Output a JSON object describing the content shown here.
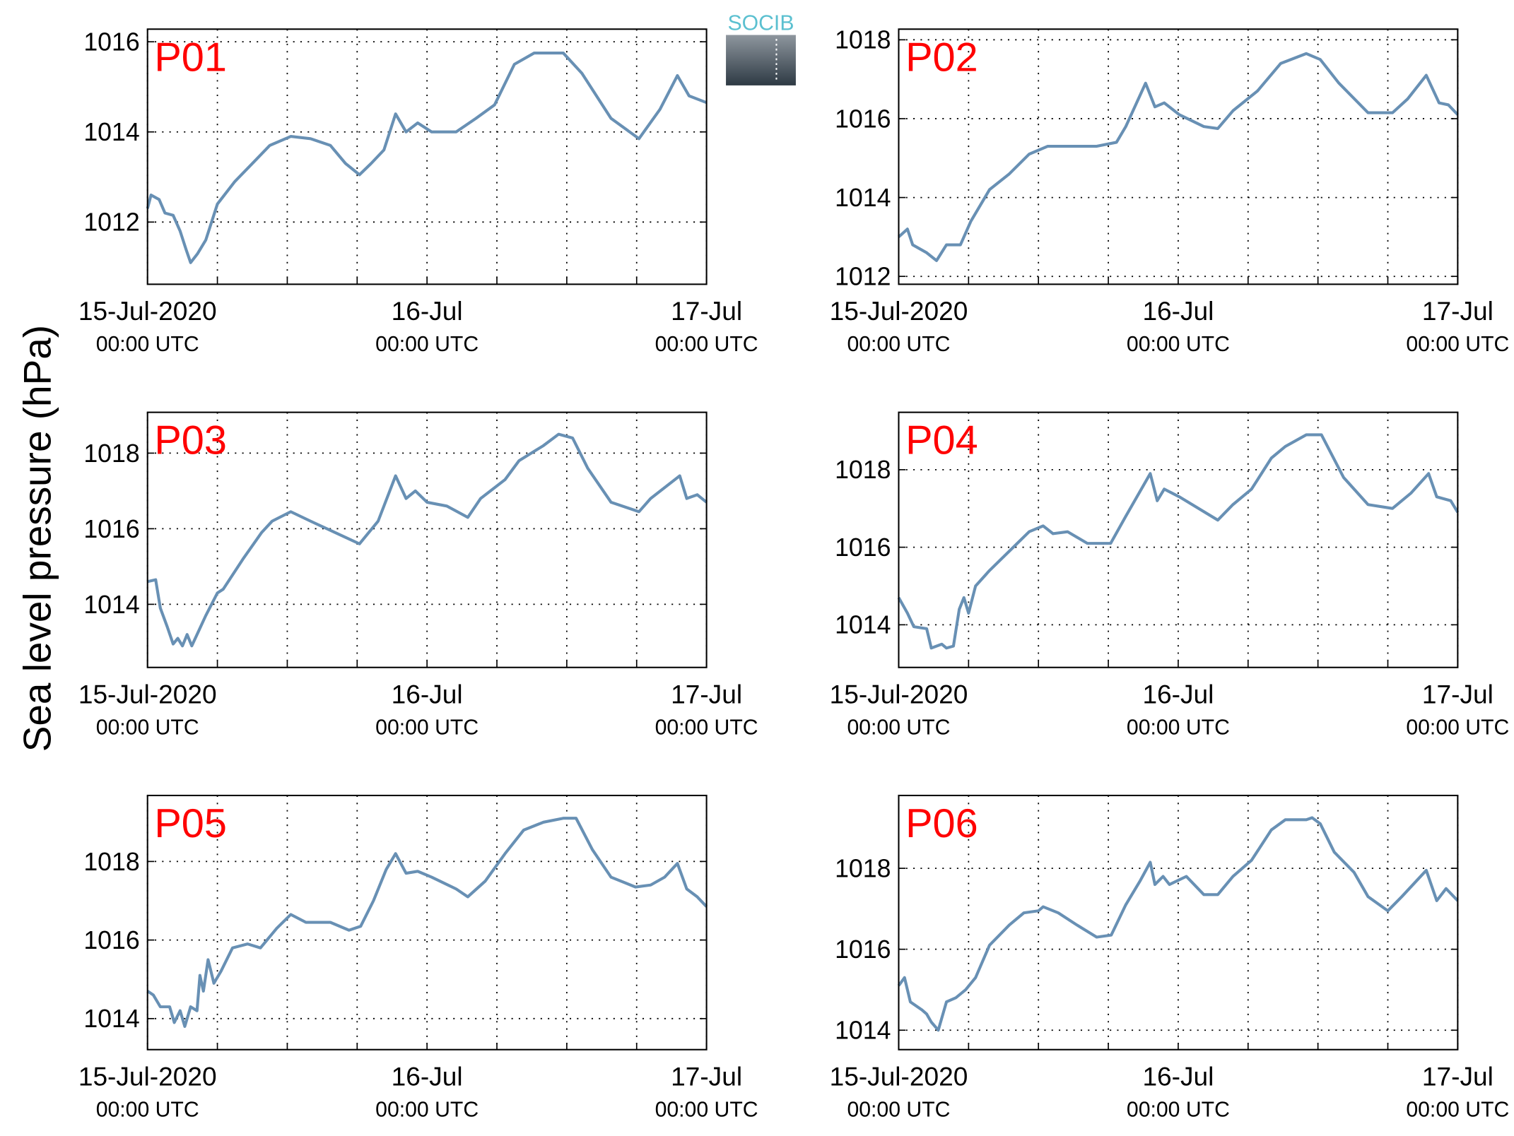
{
  "logo": "SOCIB",
  "ylabel": "Sea level pressure (hPa)",
  "chart_data": [
    {
      "type": "line",
      "title": "P01",
      "color": "#6890b4",
      "grid": true,
      "x": [
        0,
        0.3,
        1,
        1.5,
        2.2,
        2.8,
        3.3,
        3.7,
        4.3,
        5,
        6,
        7.5,
        9,
        10.5,
        12.3,
        14,
        15.7,
        17,
        18.2,
        19.2,
        20.3,
        21.3,
        22.2,
        23.2,
        24.4,
        26.5,
        28.2,
        29.8,
        31.5,
        33.2,
        35.7,
        37.3,
        39.8,
        42.2,
        44,
        45.5,
        46.5,
        48
      ],
      "values": [
        1012.3,
        1012.6,
        1012.5,
        1012.2,
        1012.15,
        1011.8,
        1011.4,
        1011.1,
        1011.3,
        1011.6,
        1012.4,
        1012.9,
        1013.3,
        1013.7,
        1013.9,
        1013.85,
        1013.7,
        1013.3,
        1013.05,
        1013.3,
        1013.6,
        1014.4,
        1014.0,
        1014.2,
        1014.0,
        1014.0,
        1014.3,
        1014.6,
        1015.5,
        1015.75,
        1015.75,
        1015.3,
        1014.3,
        1013.85,
        1014.5,
        1015.25,
        1014.8,
        1014.65
      ],
      "xlim": [
        0,
        48
      ],
      "xticks": [
        {
          "value": 0,
          "label": "15-Jul-2020"
        },
        {
          "value": 24,
          "label": "16-Jul"
        },
        {
          "value": 48,
          "label": "17-Jul"
        }
      ],
      "xtick_sublabels": [
        "00:00 UTC",
        "00:00 UTC",
        "00:00 UTC"
      ],
      "xgrid": [
        6,
        12,
        18,
        30,
        36,
        42
      ],
      "ylim": [
        1010.62,
        1016.28
      ],
      "yticks": [
        1012,
        1014,
        1016
      ]
    },
    {
      "type": "line",
      "title": "P02",
      "color": "#6890b4",
      "grid": true,
      "x": [
        0,
        0.75,
        1.2,
        2.4,
        3.25,
        4.1,
        5.3,
        6.2,
        7.8,
        9.5,
        11.2,
        12.8,
        14.5,
        17,
        18.7,
        19.5,
        21.2,
        22,
        22.8,
        24.1,
        26.2,
        27.4,
        28.7,
        30.8,
        32.8,
        35,
        36.2,
        37.8,
        40.3,
        42.4,
        43.7,
        45.3,
        46.4,
        47.2,
        48
      ],
      "values": [
        1013.0,
        1013.2,
        1012.8,
        1012.6,
        1012.4,
        1012.8,
        1012.8,
        1013.4,
        1014.2,
        1014.6,
        1015.1,
        1015.3,
        1015.3,
        1015.3,
        1015.4,
        1015.8,
        1016.9,
        1016.3,
        1016.4,
        1016.1,
        1015.8,
        1015.75,
        1016.2,
        1016.7,
        1017.4,
        1017.65,
        1017.5,
        1016.9,
        1016.15,
        1016.15,
        1016.5,
        1017.1,
        1016.4,
        1016.35,
        1016.1
      ],
      "xlim": [
        0,
        48
      ],
      "xticks": [
        {
          "value": 0,
          "label": "15-Jul-2020"
        },
        {
          "value": 24,
          "label": "16-Jul"
        },
        {
          "value": 48,
          "label": "17-Jul"
        }
      ],
      "xtick_sublabels": [
        "00:00 UTC",
        "00:00 UTC",
        "00:00 UTC"
      ],
      "xgrid": [
        6,
        12,
        18,
        30,
        36,
        42
      ],
      "ylim": [
        1011.8,
        1018.27
      ],
      "yticks": [
        1012,
        1014,
        1016,
        1018
      ]
    },
    {
      "type": "line",
      "title": "P03",
      "color": "#6890b4",
      "grid": true,
      "x": [
        0,
        0.7,
        1.1,
        1.7,
        2.2,
        2.6,
        3,
        3.4,
        3.8,
        4.4,
        5,
        6,
        6.5,
        8.2,
        9.8,
        10.7,
        12.3,
        14,
        16.1,
        18.2,
        19.8,
        21.3,
        22.2,
        23,
        24,
        25.7,
        27.5,
        28.6,
        30.7,
        31.9,
        34,
        35.3,
        36.5,
        37.8,
        39.8,
        42.2,
        43.2,
        45.7,
        46.3,
        47.2,
        48
      ],
      "values": [
        1014.6,
        1014.65,
        1013.9,
        1013.4,
        1012.95,
        1013.1,
        1012.9,
        1013.2,
        1012.9,
        1013.3,
        1013.7,
        1014.3,
        1014.4,
        1015.2,
        1015.9,
        1016.2,
        1016.45,
        1016.2,
        1015.9,
        1015.6,
        1016.2,
        1017.4,
        1016.8,
        1017.0,
        1016.7,
        1016.6,
        1016.3,
        1016.8,
        1017.3,
        1017.8,
        1018.2,
        1018.5,
        1018.4,
        1017.6,
        1016.7,
        1016.45,
        1016.8,
        1017.4,
        1016.8,
        1016.9,
        1016.7
      ],
      "xlim": [
        0,
        48
      ],
      "xticks": [
        {
          "value": 0,
          "label": "15-Jul-2020"
        },
        {
          "value": 24,
          "label": "16-Jul"
        },
        {
          "value": 48,
          "label": "17-Jul"
        }
      ],
      "xtick_sublabels": [
        "00:00 UTC",
        "00:00 UTC",
        "00:00 UTC"
      ],
      "xgrid": [
        6,
        12,
        18,
        30,
        36,
        42
      ],
      "ylim": [
        1012.33,
        1019.08
      ],
      "yticks": [
        1014,
        1016,
        1018
      ]
    },
    {
      "type": "line",
      "title": "P04",
      "color": "#6890b4",
      "grid": true,
      "x": [
        0,
        0.75,
        1.3,
        2.4,
        2.8,
        3.7,
        4.1,
        4.7,
        5.2,
        5.6,
        6,
        6.6,
        7.8,
        9.5,
        11.2,
        12.4,
        13.25,
        14.5,
        16.2,
        18.2,
        19.5,
        21.6,
        22.2,
        22.8,
        24.1,
        27.4,
        28.7,
        30.3,
        32,
        33.2,
        35,
        36.3,
        38.2,
        40.3,
        42.4,
        44,
        45.5,
        46.2,
        47.4,
        48
      ],
      "values": [
        1014.7,
        1014.3,
        1013.95,
        1013.9,
        1013.4,
        1013.5,
        1013.4,
        1013.45,
        1014.4,
        1014.7,
        1014.3,
        1015.0,
        1015.4,
        1015.9,
        1016.4,
        1016.55,
        1016.35,
        1016.4,
        1016.1,
        1016.1,
        1016.8,
        1017.9,
        1017.2,
        1017.5,
        1017.3,
        1016.7,
        1017.1,
        1017.5,
        1018.3,
        1018.6,
        1018.9,
        1018.9,
        1017.8,
        1017.1,
        1017.0,
        1017.4,
        1017.9,
        1017.3,
        1017.2,
        1016.9
      ],
      "xlim": [
        0,
        48
      ],
      "xticks": [
        {
          "value": 0,
          "label": "15-Jul-2020"
        },
        {
          "value": 24,
          "label": "16-Jul"
        },
        {
          "value": 48,
          "label": "17-Jul"
        }
      ],
      "xtick_sublabels": [
        "00:00 UTC",
        "00:00 UTC",
        "00:00 UTC"
      ],
      "xgrid": [
        6,
        12,
        18,
        30,
        36,
        42
      ],
      "ylim": [
        1012.9,
        1019.48
      ],
      "yticks": [
        1014,
        1016,
        1018
      ]
    },
    {
      "type": "line",
      "title": "P05",
      "color": "#6890b4",
      "grid": true,
      "x": [
        0,
        0.5,
        1.1,
        1.9,
        2.3,
        2.8,
        3.2,
        3.7,
        4.25,
        4.5,
        4.8,
        5.2,
        5.7,
        6.3,
        7.3,
        8.6,
        9.7,
        11.1,
        12.3,
        13.6,
        15.7,
        17.3,
        18.3,
        19.4,
        20.5,
        21.3,
        22.2,
        23.2,
        24.4,
        26.5,
        27.5,
        29,
        30.7,
        32.3,
        34,
        35.7,
        36.8,
        38.2,
        39.8,
        41.9,
        43.2,
        44.4,
        45.5,
        46.3,
        47.2,
        48
      ],
      "values": [
        1014.7,
        1014.6,
        1014.3,
        1014.3,
        1013.9,
        1014.2,
        1013.8,
        1014.3,
        1014.2,
        1015.1,
        1014.7,
        1015.5,
        1014.9,
        1015.2,
        1015.8,
        1015.9,
        1015.8,
        1016.3,
        1016.65,
        1016.45,
        1016.45,
        1016.25,
        1016.35,
        1017.0,
        1017.8,
        1018.2,
        1017.7,
        1017.75,
        1017.6,
        1017.3,
        1017.1,
        1017.5,
        1018.2,
        1018.8,
        1019.0,
        1019.1,
        1019.1,
        1018.3,
        1017.6,
        1017.35,
        1017.4,
        1017.6,
        1017.95,
        1017.3,
        1017.1,
        1016.85
      ],
      "xlim": [
        0,
        48
      ],
      "xticks": [
        {
          "value": 0,
          "label": "15-Jul-2020"
        },
        {
          "value": 24,
          "label": "16-Jul"
        },
        {
          "value": 48,
          "label": "17-Jul"
        }
      ],
      "xtick_sublabels": [
        "00:00 UTC",
        "00:00 UTC",
        "00:00 UTC"
      ],
      "xgrid": [
        6,
        12,
        18,
        30,
        36,
        42
      ],
      "ylim": [
        1013.21,
        1019.68
      ],
      "yticks": [
        1014,
        1016,
        1018
      ]
    },
    {
      "type": "line",
      "title": "P06",
      "color": "#6890b4",
      "grid": true,
      "x": [
        0,
        0.5,
        1,
        2,
        2.4,
        2.8,
        3.4,
        4.1,
        4.9,
        5.75,
        6.6,
        7.8,
        9.5,
        10.75,
        12,
        12.4,
        13.7,
        15.3,
        17,
        18.25,
        19.5,
        20.75,
        21.6,
        22,
        22.7,
        23.25,
        24.7,
        26.2,
        27.4,
        28.7,
        30.3,
        32,
        33.2,
        35,
        35.5,
        36.2,
        37.4,
        39.1,
        40.3,
        42,
        43.2,
        45.3,
        46.2,
        47,
        48
      ],
      "values": [
        1015.1,
        1015.3,
        1014.7,
        1014.5,
        1014.4,
        1014.2,
        1014.0,
        1014.7,
        1014.8,
        1015.0,
        1015.3,
        1016.1,
        1016.6,
        1016.9,
        1016.95,
        1017.05,
        1016.9,
        1016.6,
        1016.3,
        1016.35,
        1017.1,
        1017.7,
        1018.15,
        1017.6,
        1017.8,
        1017.6,
        1017.8,
        1017.35,
        1017.35,
        1017.8,
        1018.2,
        1018.95,
        1019.2,
        1019.2,
        1019.25,
        1019.1,
        1018.4,
        1017.9,
        1017.3,
        1016.95,
        1017.3,
        1017.95,
        1017.2,
        1017.5,
        1017.2
      ],
      "xlim": [
        0,
        48
      ],
      "xticks": [
        {
          "value": 0,
          "label": "15-Jul-2020"
        },
        {
          "value": 24,
          "label": "16-Jul"
        },
        {
          "value": 48,
          "label": "17-Jul"
        }
      ],
      "xtick_sublabels": [
        "00:00 UTC",
        "00:00 UTC",
        "00:00 UTC"
      ],
      "xgrid": [
        6,
        12,
        18,
        30,
        36,
        42
      ],
      "ylim": [
        1013.52,
        1019.8
      ],
      "yticks": [
        1014,
        1016,
        1018
      ]
    }
  ]
}
